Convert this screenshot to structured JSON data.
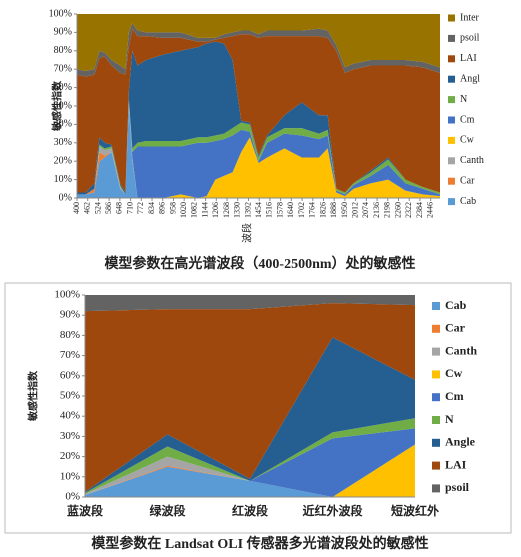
{
  "chart_data": [
    {
      "type": "area",
      "stacked": true,
      "title": "模型参数在高光谱波段（400-2500nm）处的敏感性",
      "x_label": "波段",
      "y_label": "敏感性指数",
      "legend_reversed": true,
      "x": [
        400,
        450,
        500,
        530,
        560,
        600,
        650,
        680,
        700,
        720,
        750,
        800,
        900,
        1000,
        1100,
        1150,
        1200,
        1250,
        1300,
        1350,
        1400,
        1450,
        1500,
        1600,
        1700,
        1800,
        1850,
        1900,
        1950,
        2000,
        2100,
        2200,
        2300,
        2400,
        2500
      ],
      "xlim": [
        400,
        2500
      ],
      "xticks": [
        400,
        462,
        524,
        586,
        648,
        710,
        772,
        834,
        896,
        958,
        1020,
        1082,
        1144,
        1206,
        1268,
        1330,
        1392,
        1454,
        1516,
        1578,
        1640,
        1702,
        1764,
        1826,
        1888,
        1950,
        2012,
        2074,
        2136,
        2198,
        2260,
        2322,
        2384,
        2446
      ],
      "ylim": [
        0,
        100
      ],
      "yticks": [
        {
          "value": 0,
          "label": "0%"
        },
        {
          "value": 10,
          "label": "10%"
        },
        {
          "value": 20,
          "label": "20%"
        },
        {
          "value": 30,
          "label": "30%"
        },
        {
          "value": 40,
          "label": "40%"
        },
        {
          "value": 50,
          "label": "50%"
        },
        {
          "value": 60,
          "label": "60%"
        },
        {
          "value": 70,
          "label": "70%"
        },
        {
          "value": 80,
          "label": "80%"
        },
        {
          "value": 90,
          "label": "90%"
        },
        {
          "value": 100,
          "label": "100%"
        }
      ],
      "series": [
        {
          "name": "Cab",
          "color": "#5b9bd5",
          "values": [
            2,
            2,
            3,
            20,
            22,
            25,
            5,
            2,
            50,
            20,
            0,
            0,
            0,
            0,
            0,
            0,
            0,
            0,
            0,
            0,
            0,
            0,
            0,
            0,
            0,
            0,
            0,
            0,
            0,
            0,
            0,
            0,
            0,
            0,
            0
          ]
        },
        {
          "name": "Car",
          "color": "#ed7d31",
          "values": [
            0,
            0,
            2,
            5,
            1,
            0,
            0,
            0,
            0,
            0,
            0,
            0,
            0,
            0,
            0,
            0,
            0,
            0,
            0,
            0,
            0,
            0,
            0,
            0,
            0,
            0,
            0,
            0,
            0,
            0,
            0,
            0,
            0,
            0,
            0
          ]
        },
        {
          "name": "Canth",
          "color": "#a5a5a5",
          "values": [
            0,
            0,
            0,
            3,
            3,
            2,
            1,
            0,
            2,
            2,
            0,
            0,
            0,
            0,
            0,
            0,
            0,
            0,
            0,
            0,
            0,
            0,
            0,
            0,
            0,
            0,
            0,
            0,
            0,
            0,
            0,
            0,
            0,
            0,
            0
          ]
        },
        {
          "name": "Cw",
          "color": "#ffc000",
          "values": [
            0,
            0,
            0,
            0,
            0,
            0,
            0,
            0,
            0,
            0,
            0,
            0,
            0,
            2,
            0,
            1,
            10,
            12,
            14,
            25,
            33,
            19,
            22,
            27,
            22,
            22,
            27,
            3,
            1,
            5,
            8,
            10,
            4,
            2,
            1
          ]
        },
        {
          "name": "Cm",
          "color": "#4472c4",
          "values": [
            0,
            0,
            0,
            0,
            0,
            0,
            0,
            0,
            1,
            3,
            28,
            28,
            28,
            26,
            30,
            29,
            21,
            20,
            20,
            12,
            3,
            1,
            8,
            8,
            12,
            10,
            7,
            1,
            1,
            2,
            4,
            8,
            4,
            3,
            1
          ]
        },
        {
          "name": "N",
          "color": "#70ad47",
          "values": [
            0,
            0,
            0,
            1,
            1,
            1,
            1,
            0,
            1,
            2,
            2,
            3,
            3,
            3,
            3,
            3,
            3,
            3,
            4,
            4,
            4,
            2,
            3,
            3,
            4,
            3,
            3,
            1,
            1,
            1,
            2,
            3,
            2,
            1,
            1
          ]
        },
        {
          "name": "Angl",
          "color": "#255e91",
          "values": [
            1,
            1,
            3,
            4,
            3,
            1,
            1,
            1,
            4,
            53,
            42,
            44,
            47,
            49,
            49,
            51,
            51,
            49,
            37,
            1,
            1,
            1,
            1,
            7,
            14,
            10,
            8,
            0,
            0,
            0,
            1,
            1,
            0,
            0,
            0
          ]
        },
        {
          "name": "LAI",
          "color": "#9e480e",
          "values": [
            64,
            63,
            59,
            43,
            47,
            43,
            60,
            64,
            24,
            12,
            16,
            13,
            9,
            7,
            3,
            1,
            1,
            3,
            13,
            47,
            48,
            64,
            54,
            43,
            36,
            43,
            42,
            75,
            65,
            62,
            57,
            50,
            62,
            65,
            65
          ]
        },
        {
          "name": "psoil",
          "color": "#636363",
          "values": [
            3,
            3,
            3,
            4,
            2,
            3,
            4,
            3,
            8,
            3,
            3,
            2,
            3,
            3,
            2,
            2,
            1,
            2,
            2,
            2,
            2,
            2,
            3,
            3,
            3,
            4,
            4,
            3,
            3,
            3,
            3,
            3,
            3,
            3,
            3
          ]
        },
        {
          "name": "Inter",
          "color": "#997300",
          "values": [
            30,
            31,
            30,
            20,
            21,
            25,
            28,
            30,
            10,
            5,
            9,
            10,
            10,
            10,
            13,
            13,
            13,
            11,
            10,
            9,
            9,
            11,
            9,
            9,
            9,
            8,
            9,
            17,
            29,
            27,
            25,
            25,
            25,
            26,
            29
          ]
        }
      ]
    },
    {
      "type": "area",
      "stacked": true,
      "title": "模型参数在 Landsat OLI 传感器多光谱波段处的敏感性",
      "y_label": "敏感性指数",
      "legend_reversed": false,
      "categories": [
        "蓝波段",
        "绿波段",
        "红波段",
        "近红外波段",
        "短波红外"
      ],
      "ylim": [
        0,
        100
      ],
      "yticks": [
        {
          "value": 0,
          "label": "0%"
        },
        {
          "value": 10,
          "label": "10%"
        },
        {
          "value": 20,
          "label": "20%"
        },
        {
          "value": 30,
          "label": "30%"
        },
        {
          "value": 40,
          "label": "40%"
        },
        {
          "value": 50,
          "label": "50%"
        },
        {
          "value": 60,
          "label": "60%"
        },
        {
          "value": 70,
          "label": "70%"
        },
        {
          "value": 80,
          "label": "80%"
        },
        {
          "value": 90,
          "label": "90%"
        },
        {
          "value": 100,
          "label": "100%"
        }
      ],
      "series": [
        {
          "name": "Cab",
          "color": "#5b9bd5",
          "values": [
            1,
            15,
            8,
            0,
            0
          ]
        },
        {
          "name": "Car",
          "color": "#ed7d31",
          "values": [
            0,
            0.5,
            0,
            0,
            0
          ]
        },
        {
          "name": "Canth",
          "color": "#a5a5a5",
          "values": [
            0.5,
            4.5,
            0,
            0,
            0
          ]
        },
        {
          "name": "Cw",
          "color": "#ffc000",
          "values": [
            0,
            0,
            0,
            0,
            26
          ]
        },
        {
          "name": "Cm",
          "color": "#4472c4",
          "values": [
            0,
            0,
            0,
            29,
            8
          ]
        },
        {
          "name": "N",
          "color": "#70ad47",
          "values": [
            0.5,
            5,
            0,
            3,
            5
          ]
        },
        {
          "name": "Angle",
          "color": "#255e91",
          "values": [
            0.5,
            6,
            1,
            47,
            19
          ]
        },
        {
          "name": "LAI",
          "color": "#9e480e",
          "values": [
            89.5,
            62,
            84,
            17,
            37
          ]
        },
        {
          "name": "psoil",
          "color": "#636363",
          "values": [
            8,
            7,
            7,
            4,
            5
          ]
        }
      ]
    }
  ]
}
